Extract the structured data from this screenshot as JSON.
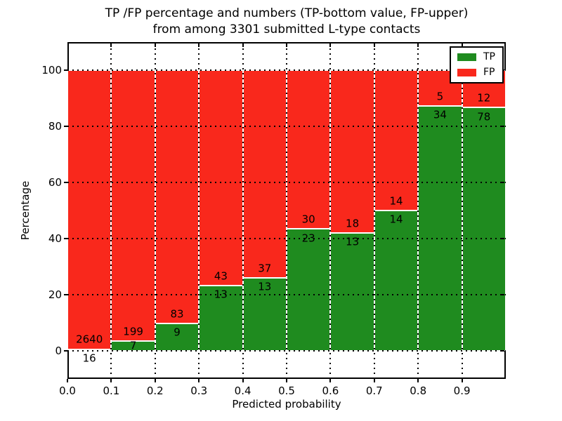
{
  "chart_data": {
    "type": "bar",
    "subtype": "stacked-percentage",
    "title_lines": [
      "TP /FP percentage and numbers (TP-bottom value, FP-upper)",
      "from among 3301 submitted L-type contacts"
    ],
    "total_contacts": 3301,
    "xlabel": "Predicted probability",
    "ylabel": "Percentage",
    "xlim": [
      0.0,
      1.0
    ],
    "ylim": [
      -10,
      110
    ],
    "xtick_values": [
      0.0,
      0.1,
      0.2,
      0.3,
      0.4,
      0.5,
      0.6,
      0.7,
      0.8,
      0.9
    ],
    "xtick_labels": [
      "0.0",
      "0.1",
      "0.2",
      "0.3",
      "0.4",
      "0.5",
      "0.6",
      "0.7",
      "0.8",
      "0.9"
    ],
    "ytick_values": [
      0,
      20,
      40,
      60,
      80,
      100
    ],
    "ytick_labels": [
      "0",
      "20",
      "40",
      "60",
      "80",
      "100"
    ],
    "grid": true,
    "bin_edges": [
      0.0,
      0.1,
      0.2,
      0.3,
      0.4,
      0.5,
      0.6,
      0.7,
      0.8,
      0.9,
      1.0
    ],
    "series": [
      {
        "name": "TP",
        "color": "#1f8b1f",
        "counts": [
          16,
          7,
          9,
          13,
          13,
          23,
          13,
          14,
          34,
          78
        ]
      },
      {
        "name": "FP",
        "color": "#f9281c",
        "counts": [
          2640,
          199,
          83,
          43,
          37,
          30,
          18,
          14,
          5,
          12
        ]
      }
    ],
    "tp_percent_per_bin": [
      0.6,
      3.4,
      9.8,
      23.2,
      26.0,
      43.4,
      41.9,
      50.0,
      87.2,
      86.7
    ],
    "legend": {
      "position": "upper right",
      "entries": [
        {
          "label": "TP",
          "color": "#1f8b1f"
        },
        {
          "label": "FP",
          "color": "#f9281c"
        }
      ]
    }
  }
}
